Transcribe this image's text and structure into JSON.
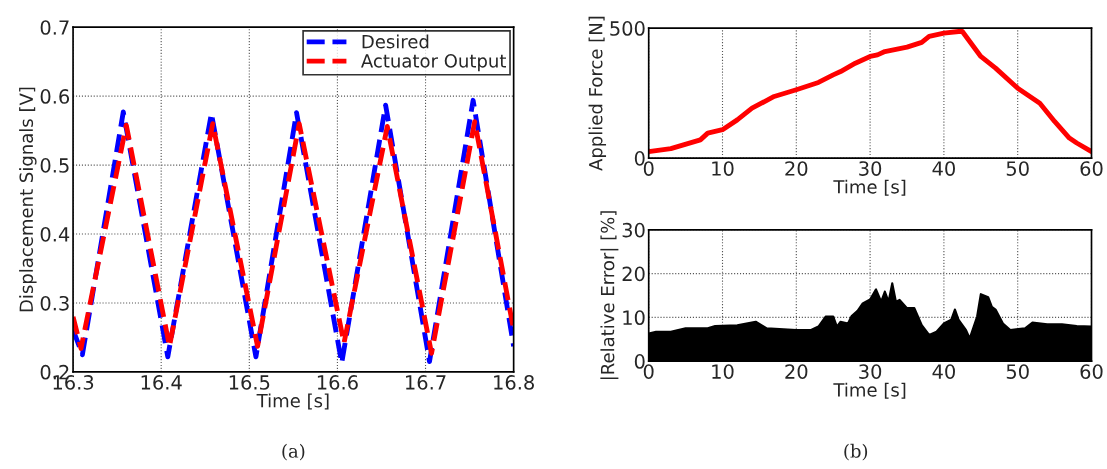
{
  "chart_data": [
    {
      "type": "line",
      "xlabel": "Time [s]",
      "ylabel": "Displacement Signals [V]",
      "xlim": [
        16.3,
        16.8
      ],
      "xticks": [
        16.3,
        16.4,
        16.5,
        16.6,
        16.7,
        16.8
      ],
      "ylim": [
        0.2,
        0.7
      ],
      "yticks": [
        0.2,
        0.3,
        0.4,
        0.5,
        0.6,
        0.7
      ],
      "grid": true,
      "legend": "top right",
      "line_style": "dashed",
      "annotations": [
        "(a)"
      ],
      "series": [
        {
          "name": "Desired",
          "color": "#0000ff",
          "x": [
            16.3,
            16.3106,
            16.357,
            16.4075,
            16.457,
            16.5075,
            16.5536,
            16.6049,
            16.6547,
            16.7045,
            16.754,
            16.8
          ],
          "values": [
            0.261,
            0.225,
            0.577,
            0.222,
            0.575,
            0.222,
            0.576,
            0.213,
            0.587,
            0.215,
            0.594,
            0.237
          ]
        },
        {
          "name": "Actuator Output",
          "color": "#ff0000",
          "x": [
            16.3,
            16.309,
            16.3604,
            16.4094,
            16.4585,
            16.5094,
            16.5566,
            16.6075,
            16.6566,
            16.7068,
            16.7558,
            16.8
          ],
          "values": [
            0.28,
            0.234,
            0.558,
            0.237,
            0.56,
            0.237,
            0.56,
            0.242,
            0.556,
            0.227,
            0.563,
            0.261
          ]
        }
      ]
    },
    {
      "type": "line",
      "xlabel": "Time [s]",
      "ylabel": "Applied Force [N]",
      "xlim": [
        0,
        60
      ],
      "xticks": [
        0,
        10,
        20,
        30,
        40,
        50,
        60
      ],
      "ylim": [
        0,
        500
      ],
      "yticks": [
        0,
        500
      ],
      "grid": true,
      "line_style": "solid",
      "annotations": [
        "(b)"
      ],
      "series": [
        {
          "color": "#ff0000",
          "x": [
            0,
            3,
            7,
            8,
            10,
            12,
            14,
            17,
            20,
            23,
            25,
            26,
            28,
            30,
            31,
            32,
            35,
            37,
            38,
            40,
            42,
            42.5,
            45,
            47,
            50,
            53,
            55,
            57,
            58,
            60
          ],
          "values": [
            25,
            36,
            70,
            96,
            109,
            147,
            192,
            237,
            263,
            291,
            320,
            333,
            365,
            391,
            397,
            410,
            427,
            445,
            468,
            481,
            487,
            487,
            391,
            346,
            269,
            211,
            141,
            77,
            58,
            25
          ]
        }
      ]
    },
    {
      "type": "area",
      "xlabel": "Time [s]",
      "ylabel": "|Relative Error| [%]",
      "xlim": [
        0,
        60
      ],
      "xticks": [
        0,
        10,
        20,
        30,
        40,
        50,
        60
      ],
      "ylim": [
        0,
        30
      ],
      "yticks": [
        0,
        10,
        20,
        30
      ],
      "grid": true,
      "series": [
        {
          "color": "#000000",
          "x": [
            0,
            1,
            3,
            5,
            8,
            9,
            12,
            14.5,
            16,
            20,
            22,
            23,
            24,
            25,
            25.5,
            26,
            27,
            27.5,
            28.3,
            29,
            30,
            30.8,
            31.5,
            32,
            32.5,
            33,
            33.5,
            34,
            35,
            36,
            37,
            38,
            39,
            40,
            41,
            41.5,
            42,
            43,
            43.5,
            44.5,
            45,
            46,
            46.5,
            47,
            48,
            49,
            51,
            52,
            54,
            56,
            58,
            60
          ],
          "values": [
            6.3,
            6.7,
            6.7,
            7.5,
            7.5,
            8,
            8.2,
            9,
            7.5,
            7.1,
            7.1,
            7.9,
            10.2,
            10.2,
            7.9,
            9,
            8.6,
            10.3,
            11.5,
            13.2,
            14.1,
            16.4,
            13.6,
            15.9,
            13.6,
            17.8,
            13.6,
            14,
            12.1,
            12.1,
            8.2,
            6,
            6.7,
            8.6,
            9.5,
            11.8,
            9.4,
            7.1,
            5.2,
            10.2,
            15.3,
            14.6,
            12.4,
            11.8,
            8.6,
            7.1,
            7.5,
            8.8,
            8.4,
            8.4,
            8,
            7.9
          ]
        }
      ]
    }
  ]
}
